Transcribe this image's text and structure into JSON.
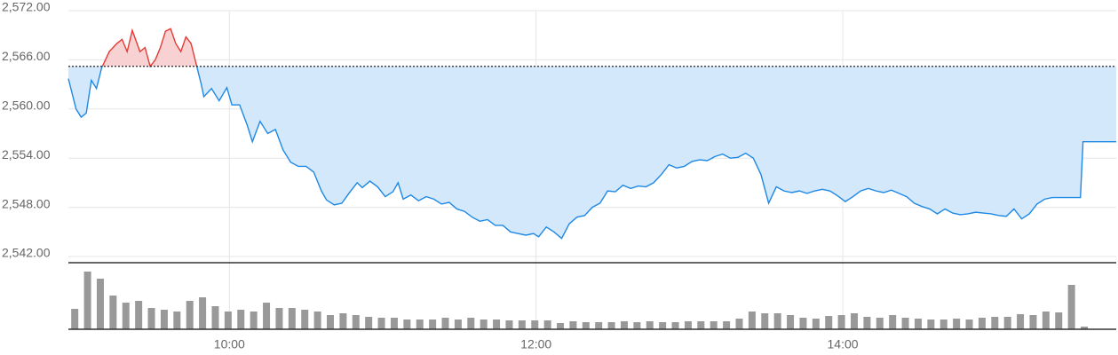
{
  "chart_data": {
    "type": "line",
    "x": [
      537,
      540,
      542,
      544,
      546,
      548,
      550,
      553,
      556,
      558,
      560,
      562,
      565,
      567,
      569,
      571,
      573,
      575,
      577,
      579,
      581,
      583,
      585,
      587,
      589,
      590,
      593,
      596,
      599,
      601,
      604,
      607,
      609,
      612,
      615,
      618,
      621,
      624,
      627,
      630,
      633,
      636,
      638,
      641,
      644,
      647,
      650,
      652,
      655,
      658,
      661,
      664,
      666,
      668,
      671,
      674,
      677,
      680,
      683,
      686,
      689,
      692,
      695,
      698,
      701,
      704,
      707,
      710,
      713,
      716,
      719,
      721,
      724,
      727,
      730,
      733,
      736,
      739,
      742,
      745,
      748,
      751,
      754,
      757,
      760,
      763,
      766,
      769,
      772,
      775,
      778,
      781,
      784,
      787,
      790,
      793,
      796,
      799,
      802,
      805,
      808,
      811,
      814,
      817,
      820,
      823,
      826,
      829,
      832,
      835,
      838,
      841,
      844,
      847,
      850,
      853,
      856,
      859,
      862,
      865,
      868,
      871,
      874,
      877,
      880,
      883,
      886,
      889,
      892,
      895,
      898,
      901,
      904,
      907,
      910,
      913,
      916,
      919,
      922,
      933,
      934,
      947
    ],
    "series": [
      {
        "color": "#1e88e5",
        "above_color": "#e53935",
        "fill": "#d4e8fb",
        "above_fill": "#f8d2d2",
        "values": [
          2563.7,
          2560,
          2559,
          2559.5,
          2563.5,
          2562.5,
          2565,
          2567,
          2568,
          2568.5,
          2567,
          2569.6,
          2567,
          2567.5,
          2565.2,
          2566,
          2567.5,
          2569.5,
          2569.8,
          2568,
          2567,
          2568.8,
          2568,
          2565.5,
          2563,
          2561.5,
          2562.5,
          2561,
          2562.6,
          2560.5,
          2560.5,
          2558,
          2556,
          2558.5,
          2557,
          2557.5,
          2555,
          2553.5,
          2553,
          2553,
          2552.3,
          2550,
          2548.9,
          2548.3,
          2548.5,
          2549.8,
          2551,
          2550.4,
          2551.2,
          2550.5,
          2549.3,
          2549.9,
          2551,
          2549,
          2549.5,
          2548.8,
          2549.3,
          2549,
          2548.4,
          2548.6,
          2547.8,
          2547.5,
          2546.8,
          2546.3,
          2546.5,
          2545.8,
          2545.8,
          2545,
          2544.8,
          2544.6,
          2544.8,
          2544.4,
          2545.6,
          2545,
          2544.2,
          2546,
          2546.8,
          2547,
          2548,
          2548.5,
          2550,
          2549.9,
          2550.7,
          2550.3,
          2550.6,
          2550.5,
          2551,
          2552,
          2553.2,
          2552.8,
          2553,
          2553.6,
          2553.8,
          2553.7,
          2554.2,
          2554.5,
          2554,
          2554.1,
          2554.6,
          2554,
          2552,
          2548.5,
          2550.5,
          2550,
          2549.8,
          2550,
          2549.7,
          2550,
          2550.2,
          2550,
          2549.4,
          2548.7,
          2549.3,
          2550,
          2550.3,
          2550,
          2549.8,
          2550.1,
          2549.7,
          2549.3,
          2548.5,
          2548.1,
          2547.8,
          2547.2,
          2547.8,
          2547.3,
          2547.1,
          2547.2,
          2547.4,
          2547.3,
          2547.2,
          2547,
          2546.9,
          2547.8,
          2546.6,
          2547.2,
          2548.4,
          2549,
          2549.2,
          2549.2,
          2556,
          2556
        ]
      }
    ],
    "baseline": 2565.2,
    "xlim": [
      537,
      947
    ],
    "xticks": [
      {
        "value": 600,
        "label": "10:00"
      },
      {
        "value": 720,
        "label": "12:00"
      },
      {
        "value": 840,
        "label": "14:00"
      }
    ],
    "ylim": [
      2542,
      2572
    ],
    "yticks": [
      {
        "value": 2542,
        "label": "2,542.00"
      },
      {
        "value": 2548,
        "label": "2,548.00"
      },
      {
        "value": 2554,
        "label": "2,554.00"
      },
      {
        "value": 2560,
        "label": "2,560.00"
      },
      {
        "value": 2566,
        "label": "2,566.00"
      },
      {
        "value": 2572,
        "label": "2,572.00"
      }
    ],
    "grid": true,
    "volume": {
      "color": "#999999",
      "ylim": [
        0,
        74
      ],
      "x": [
        539.5,
        544.5,
        549.5,
        554.5,
        559.5,
        564.5,
        569.5,
        574.5,
        579.5,
        584.5,
        589.5,
        594.5,
        599.5,
        604.5,
        609.5,
        614.5,
        619.5,
        624.5,
        629.5,
        634.5,
        639.5,
        644.5,
        649.5,
        654.5,
        659.5,
        664.5,
        669.5,
        674.5,
        679.5,
        684.5,
        689.5,
        694.5,
        699.5,
        704.5,
        709.5,
        714.5,
        719.5,
        724.5,
        729.5,
        734.5,
        739.5,
        744.5,
        749.5,
        754.5,
        759.5,
        764.5,
        769.5,
        774.5,
        779.5,
        784.5,
        789.5,
        794.5,
        799.5,
        804.5,
        809.5,
        814.5,
        819.5,
        824.5,
        829.5,
        834.5,
        839.5,
        844.5,
        849.5,
        854.5,
        859.5,
        864.5,
        869.5,
        874.5,
        879.5,
        884.5,
        889.5,
        894.5,
        899.5,
        904.5,
        909.5,
        914.5,
        919.5,
        924.5,
        929.5,
        934.5
      ],
      "values": [
        23,
        65,
        57,
        38,
        30,
        32,
        24,
        22,
        20,
        32,
        36,
        26,
        20,
        22,
        20,
        30,
        24,
        24,
        22,
        20,
        16,
        18,
        16,
        14,
        13,
        13,
        11,
        11,
        11,
        13,
        11,
        13,
        11,
        11,
        10,
        10,
        10,
        10,
        7,
        9,
        8,
        8,
        8,
        9,
        8,
        9,
        8,
        8,
        9,
        9,
        9,
        9,
        12,
        20,
        18,
        18,
        16,
        13,
        12,
        15,
        16,
        18,
        14,
        13,
        16,
        13,
        12,
        11,
        11,
        12,
        11,
        13,
        14,
        14,
        17,
        16,
        20,
        19,
        50,
        3
      ]
    }
  }
}
